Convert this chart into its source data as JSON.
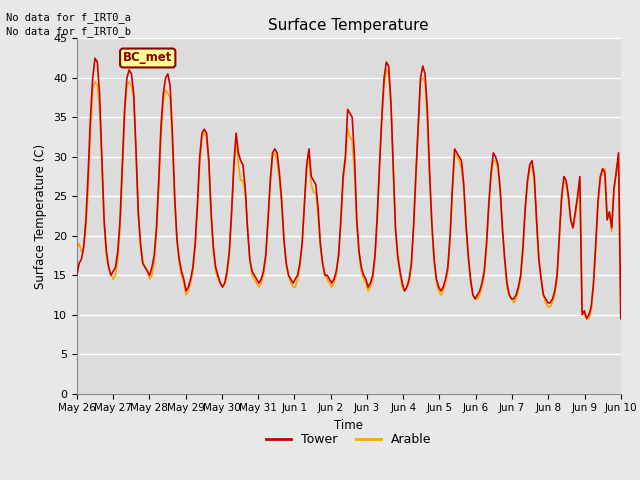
{
  "title": "Surface Temperature",
  "ylabel": "Surface Temperature (C)",
  "xlabel": "Time",
  "text_line1": "No data for f_IRT0_a",
  "text_line2": "No data for f_IRT0_b",
  "annotation_box": "BC_met",
  "ylim": [
    0,
    45
  ],
  "yticks": [
    0,
    5,
    10,
    15,
    20,
    25,
    30,
    35,
    40,
    45
  ],
  "xtick_labels": [
    "May 26",
    "May 27",
    "May 28",
    "May 29",
    "May 30",
    "May 31",
    "Jun 1",
    "Jun 2",
    "Jun 3",
    "Jun 4",
    "Jun 5",
    "Jun 6",
    "Jun 7",
    "Jun 8",
    "Jun 9",
    "Jun 10"
  ],
  "legend_entries": [
    "Tower",
    "Arable"
  ],
  "tower_color": "#CC0000",
  "arable_color": "#FFA500",
  "fig_bg_color": "#E8E8E8",
  "plot_bg_color": "#DCDCDC",
  "tower_data": [
    15.0,
    16.5,
    17.0,
    18.5,
    22.0,
    28.0,
    35.0,
    40.0,
    42.5,
    42.0,
    38.0,
    30.0,
    22.0,
    18.0,
    16.0,
    15.0,
    15.5,
    16.0,
    18.0,
    22.0,
    29.0,
    36.0,
    40.0,
    41.0,
    40.5,
    38.0,
    31.0,
    23.0,
    19.0,
    16.5,
    16.0,
    15.5,
    15.0,
    16.0,
    17.5,
    21.0,
    27.0,
    34.0,
    38.0,
    40.0,
    40.5,
    39.0,
    33.0,
    25.0,
    19.5,
    17.0,
    15.5,
    14.5,
    13.0,
    13.5,
    14.5,
    16.0,
    19.0,
    24.0,
    30.0,
    33.0,
    33.5,
    33.0,
    29.5,
    23.0,
    18.5,
    16.0,
    15.0,
    14.0,
    13.5,
    14.0,
    15.5,
    18.0,
    23.0,
    29.0,
    33.0,
    30.5,
    29.5,
    29.0,
    26.0,
    21.0,
    17.0,
    15.5,
    15.0,
    14.5,
    14.0,
    14.5,
    15.5,
    17.5,
    22.0,
    27.0,
    30.5,
    31.0,
    30.5,
    28.0,
    24.5,
    19.5,
    16.5,
    15.0,
    14.5,
    14.0,
    14.5,
    15.0,
    16.5,
    19.0,
    24.0,
    29.0,
    31.0,
    27.5,
    27.0,
    26.5,
    23.5,
    19.0,
    16.5,
    15.0,
    15.0,
    14.5,
    14.0,
    14.5,
    15.5,
    17.5,
    22.0,
    27.5,
    30.0,
    36.0,
    35.5,
    35.0,
    30.0,
    22.0,
    18.0,
    16.0,
    15.0,
    14.5,
    13.5,
    14.0,
    15.0,
    17.5,
    22.5,
    29.0,
    35.0,
    40.0,
    42.0,
    41.5,
    37.0,
    29.0,
    21.0,
    17.5,
    15.5,
    14.0,
    13.0,
    13.5,
    14.5,
    16.5,
    21.5,
    28.0,
    34.0,
    40.0,
    41.5,
    40.5,
    36.0,
    28.0,
    21.5,
    17.0,
    14.5,
    13.5,
    13.0,
    13.5,
    14.5,
    16.0,
    20.0,
    26.0,
    31.0,
    30.5,
    30.0,
    29.5,
    26.5,
    21.5,
    17.5,
    14.5,
    12.5,
    12.0,
    12.5,
    13.0,
    14.0,
    15.5,
    19.0,
    24.0,
    28.0,
    30.5,
    30.0,
    29.0,
    26.0,
    21.0,
    17.0,
    14.0,
    12.5,
    12.0,
    12.0,
    12.5,
    13.5,
    15.0,
    18.5,
    23.5,
    27.0,
    29.0,
    29.5,
    27.5,
    22.0,
    17.0,
    14.5,
    12.5,
    12.0,
    11.5,
    11.5,
    12.0,
    13.0,
    15.0,
    20.0,
    25.0,
    27.5,
    27.0,
    25.0,
    22.0,
    21.0,
    23.0,
    25.0,
    27.5,
    10.0,
    10.5,
    9.5,
    10.0,
    11.0,
    14.0,
    19.0,
    24.5,
    27.5,
    28.5,
    28.0,
    22.0,
    23.0,
    21.0,
    26.0,
    28.0,
    30.5,
    9.5
  ],
  "arable_data": [
    18.5,
    19.0,
    18.0,
    18.5,
    21.0,
    26.0,
    33.0,
    38.5,
    39.5,
    39.0,
    36.0,
    29.0,
    21.5,
    17.5,
    16.0,
    15.0,
    14.5,
    15.0,
    17.0,
    21.0,
    28.0,
    35.0,
    39.0,
    39.5,
    39.0,
    37.5,
    30.5,
    23.0,
    18.5,
    16.5,
    16.0,
    15.5,
    14.5,
    15.0,
    16.5,
    20.5,
    26.0,
    32.5,
    37.0,
    38.5,
    38.0,
    37.5,
    31.5,
    24.5,
    19.5,
    16.5,
    15.0,
    14.0,
    12.5,
    13.0,
    14.0,
    15.5,
    18.5,
    23.5,
    29.0,
    32.5,
    33.0,
    32.5,
    29.0,
    22.5,
    18.0,
    15.5,
    14.5,
    14.0,
    13.5,
    14.0,
    15.0,
    17.5,
    22.5,
    28.5,
    32.5,
    29.0,
    27.0,
    27.0,
    25.5,
    21.0,
    17.0,
    15.0,
    14.5,
    14.0,
    13.5,
    14.0,
    15.0,
    17.0,
    21.5,
    26.5,
    30.0,
    30.5,
    29.5,
    27.0,
    24.0,
    19.5,
    16.5,
    15.0,
    14.0,
    13.5,
    13.5,
    14.5,
    16.0,
    19.0,
    24.0,
    28.5,
    30.0,
    26.5,
    25.5,
    25.5,
    22.5,
    18.5,
    16.5,
    15.0,
    14.5,
    14.0,
    13.5,
    14.0,
    15.0,
    17.5,
    21.5,
    27.0,
    29.5,
    33.5,
    32.5,
    32.0,
    28.0,
    21.5,
    17.5,
    15.5,
    14.5,
    14.0,
    13.0,
    13.5,
    14.5,
    17.0,
    22.0,
    28.5,
    34.5,
    39.0,
    41.0,
    40.5,
    36.5,
    28.5,
    21.0,
    17.0,
    15.0,
    13.5,
    13.0,
    13.5,
    14.0,
    16.0,
    21.0,
    27.5,
    33.5,
    39.5,
    40.0,
    39.5,
    34.5,
    27.0,
    21.0,
    16.5,
    14.0,
    13.0,
    12.5,
    13.0,
    14.0,
    15.5,
    19.5,
    25.5,
    30.5,
    30.0,
    29.5,
    28.5,
    26.0,
    21.0,
    17.0,
    14.0,
    12.5,
    12.0,
    12.0,
    12.5,
    13.5,
    15.0,
    18.5,
    23.5,
    27.5,
    29.5,
    29.5,
    28.5,
    25.5,
    20.5,
    17.0,
    13.5,
    12.5,
    12.0,
    11.5,
    12.0,
    13.0,
    14.5,
    18.0,
    23.0,
    26.5,
    28.5,
    29.0,
    27.0,
    21.5,
    17.0,
    14.5,
    12.5,
    11.5,
    11.0,
    11.0,
    11.5,
    12.5,
    14.5,
    19.5,
    24.5,
    27.0,
    26.5,
    24.5,
    22.0,
    21.0,
    22.5,
    24.5,
    27.0,
    10.5,
    10.0,
    9.5,
    9.5,
    10.5,
    13.5,
    18.5,
    24.0,
    27.0,
    28.0,
    28.5,
    22.5,
    23.0,
    20.5,
    25.5,
    28.5,
    30.0,
    9.5
  ]
}
